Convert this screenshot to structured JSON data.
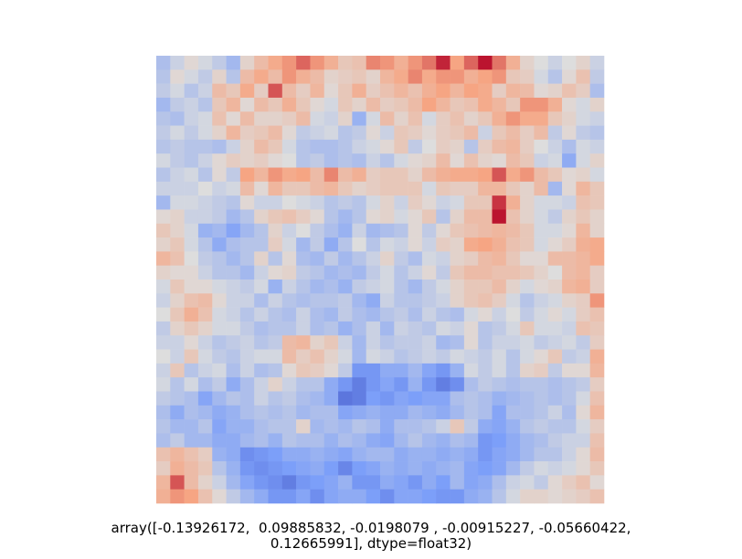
{
  "caption": {
    "line1": "array([-0.13926172,  0.09885832, -0.0198079 , -0.00915227, -0.05660422,",
    "line2": "0.12665991], dtype=float32)"
  },
  "chart_data": {
    "type": "heatmap",
    "title": "",
    "xlabel": "",
    "ylabel": "",
    "axes": "off",
    "colormap": "coolwarm",
    "vrange": [
      -1,
      1
    ],
    "rows": 32,
    "cols": 32,
    "values": [
      [
        -0.25,
        -0.1,
        0.05,
        -0.05,
        -0.15,
        -0.3,
        0.1,
        0.3,
        0.45,
        0.55,
        0.7,
        0.55,
        0.4,
        0.2,
        0.25,
        0.6,
        0.55,
        0.4,
        0.55,
        0.65,
        0.9,
        0.5,
        0.7,
        0.95,
        0.65,
        0.4,
        0.1,
        0.0,
        -0.1,
        0.0,
        0.1,
        -0.1
      ],
      [
        -0.2,
        0.05,
        -0.05,
        -0.15,
        0.1,
        -0.2,
        0.3,
        0.45,
        0.3,
        0.55,
        0.4,
        0.3,
        0.1,
        0.15,
        0.2,
        0.1,
        0.35,
        0.45,
        0.6,
        0.45,
        0.55,
        0.55,
        0.4,
        0.5,
        0.55,
        0.2,
        0.15,
        -0.05,
        -0.2,
        0.05,
        0.25,
        -0.15
      ],
      [
        -0.15,
        -0.05,
        -0.2,
        -0.1,
        0.3,
        0.2,
        0.45,
        0.15,
        0.75,
        0.3,
        0.15,
        0.35,
        0.05,
        0.2,
        0.4,
        0.15,
        0.25,
        0.35,
        0.25,
        0.4,
        0.5,
        0.35,
        0.5,
        0.45,
        0.15,
        0.35,
        0.3,
        0.05,
        0.1,
        0.25,
        0.15,
        -0.25
      ],
      [
        -0.3,
        -0.15,
        -0.1,
        -0.2,
        0.2,
        0.35,
        0.05,
        0.3,
        0.2,
        0.4,
        0.2,
        0.05,
        -0.05,
        0.2,
        0.1,
        0.3,
        0.15,
        0.2,
        0.3,
        0.5,
        0.35,
        0.2,
        0.25,
        0.45,
        0.35,
        0.2,
        0.55,
        0.55,
        0.4,
        0.05,
        -0.05,
        0.1
      ],
      [
        -0.2,
        -0.25,
        -0.1,
        -0.05,
        0.25,
        0.05,
        0.3,
        0.1,
        0.1,
        0.15,
        0.3,
        -0.05,
        -0.1,
        0.1,
        -0.35,
        -0.05,
        0.3,
        0.1,
        0.25,
        -0.05,
        0.15,
        0.25,
        0.1,
        0.2,
        0.4,
        0.55,
        0.45,
        0.45,
        0.2,
        0.1,
        -0.05,
        -0.1
      ],
      [
        -0.15,
        -0.05,
        -0.15,
        -0.05,
        0.1,
        0.35,
        0.15,
        0.2,
        0.3,
        0.05,
        -0.15,
        -0.1,
        -0.05,
        -0.2,
        -0.15,
        0.05,
        -0.1,
        0.2,
        0.15,
        0.05,
        0.15,
        0.2,
        0.3,
        -0.1,
        0.2,
        0.3,
        0.15,
        0.3,
        -0.15,
        0.05,
        -0.15,
        -0.2
      ],
      [
        -0.2,
        -0.15,
        -0.2,
        -0.2,
        -0.25,
        -0.1,
        0.1,
        0.3,
        0.2,
        -0.05,
        -0.2,
        -0.25,
        -0.25,
        -0.2,
        -0.1,
        -0.05,
        0.05,
        0.2,
        -0.15,
        0.0,
        0.15,
        0.1,
        -0.2,
        0.15,
        0.3,
        0.35,
        0.15,
        0.0,
        -0.1,
        -0.25,
        -0.05,
        -0.1
      ],
      [
        -0.05,
        -0.15,
        -0.2,
        -0.1,
        0.05,
        0.15,
        0.1,
        0.15,
        0.05,
        0.0,
        -0.2,
        -0.15,
        -0.25,
        -0.2,
        -0.25,
        -0.1,
        -0.2,
        -0.05,
        0.05,
        0.1,
        0.3,
        0.05,
        0.25,
        0.1,
        0.05,
        0.3,
        0.2,
        -0.1,
        -0.05,
        -0.4,
        -0.05,
        0.1
      ],
      [
        -0.2,
        -0.1,
        -0.05,
        -0.2,
        0.05,
        -0.15,
        0.5,
        0.35,
        0.55,
        0.45,
        0.5,
        0.3,
        0.6,
        0.3,
        0.4,
        0.15,
        0.2,
        0.2,
        0.1,
        0.3,
        0.4,
        0.45,
        0.45,
        0.5,
        0.75,
        0.45,
        0.55,
        0.3,
        0.2,
        0.05,
        0.1,
        -0.05
      ],
      [
        -0.1,
        -0.1,
        -0.1,
        0.0,
        -0.1,
        -0.05,
        0.3,
        0.05,
        0.35,
        0.2,
        0.2,
        0.3,
        0.35,
        0.2,
        0.1,
        0.15,
        0.2,
        0.2,
        0.2,
        -0.05,
        0.2,
        0.15,
        0.15,
        0.35,
        0.35,
        0.2,
        0.1,
        0.3,
        -0.3,
        0.05,
        0.35,
        0.2
      ],
      [
        -0.3,
        -0.05,
        -0.05,
        -0.1,
        -0.15,
        -0.2,
        0.05,
        -0.1,
        -0.1,
        0.0,
        -0.05,
        -0.1,
        -0.2,
        -0.15,
        -0.2,
        -0.05,
        0.1,
        -0.1,
        0.15,
        0.05,
        -0.1,
        -0.05,
        0.2,
        0.2,
        0.85,
        0.4,
        0.1,
        -0.05,
        -0.05,
        -0.1,
        0.25,
        0.2
      ],
      [
        0.05,
        0.1,
        -0.1,
        -0.1,
        -0.15,
        -0.3,
        -0.2,
        0.1,
        0.2,
        0.25,
        0.15,
        0.05,
        -0.2,
        -0.3,
        -0.2,
        0.05,
        0.1,
        -0.05,
        0.05,
        0.2,
        -0.2,
        0.1,
        0.3,
        0.3,
        0.95,
        0.25,
        0.1,
        -0.05,
        -0.15,
        0.1,
        0.2,
        0.1
      ],
      [
        0.2,
        0.1,
        -0.05,
        -0.35,
        -0.3,
        -0.45,
        -0.3,
        -0.2,
        0.1,
        -0.1,
        0.0,
        -0.15,
        -0.25,
        -0.35,
        -0.1,
        -0.3,
        -0.25,
        -0.2,
        0.05,
        -0.15,
        0.05,
        0.2,
        0.25,
        0.3,
        0.35,
        0.3,
        0.2,
        -0.05,
        -0.05,
        0.05,
        0.35,
        0.1
      ],
      [
        0.1,
        0.2,
        -0.05,
        -0.2,
        -0.4,
        -0.25,
        -0.2,
        -0.2,
        0.15,
        -0.05,
        -0.3,
        -0.15,
        -0.4,
        -0.2,
        0.0,
        -0.2,
        -0.05,
        -0.1,
        0.05,
        -0.1,
        0.15,
        0.1,
        0.45,
        0.5,
        0.4,
        0.25,
        0.2,
        -0.05,
        0.05,
        0.15,
        0.4,
        0.45
      ],
      [
        0.35,
        0.25,
        0.0,
        -0.15,
        -0.2,
        -0.3,
        -0.2,
        0.1,
        -0.2,
        0.05,
        -0.25,
        -0.3,
        -0.15,
        -0.3,
        -0.2,
        -0.1,
        0.1,
        -0.15,
        -0.25,
        -0.05,
        -0.1,
        0.1,
        0.15,
        0.3,
        0.35,
        0.2,
        0.05,
        0.05,
        0.3,
        0.3,
        0.35,
        0.45
      ],
      [
        0.1,
        0.05,
        0.05,
        -0.1,
        -0.2,
        -0.2,
        -0.3,
        -0.1,
        0.05,
        0.1,
        -0.15,
        -0.2,
        -0.3,
        -0.25,
        -0.3,
        -0.15,
        -0.05,
        -0.2,
        -0.1,
        0.05,
        -0.15,
        0.2,
        0.3,
        0.3,
        0.25,
        0.25,
        0.2,
        0.1,
        0.0,
        0.3,
        0.35,
        0.15
      ],
      [
        -0.05,
        0.2,
        0.05,
        0.05,
        -0.05,
        -0.1,
        -0.15,
        -0.05,
        -0.35,
        -0.1,
        -0.2,
        -0.3,
        -0.25,
        -0.35,
        -0.15,
        -0.1,
        -0.05,
        -0.2,
        -0.3,
        -0.15,
        -0.05,
        0.1,
        0.2,
        0.2,
        0.3,
        0.1,
        -0.05,
        0.05,
        0.1,
        0.35,
        0.4,
        0.15
      ],
      [
        -0.1,
        0.1,
        0.25,
        0.3,
        0.05,
        -0.1,
        -0.1,
        -0.25,
        -0.1,
        -0.2,
        -0.25,
        -0.2,
        -0.2,
        -0.15,
        -0.3,
        -0.4,
        -0.1,
        -0.2,
        -0.2,
        -0.15,
        -0.1,
        0.1,
        0.2,
        0.25,
        0.15,
        -0.05,
        -0.2,
        -0.1,
        -0.05,
        0.1,
        0.15,
        0.55
      ],
      [
        0.0,
        0.2,
        0.4,
        0.25,
        -0.05,
        -0.1,
        -0.2,
        -0.1,
        -0.2,
        -0.25,
        -0.1,
        -0.25,
        -0.3,
        -0.15,
        -0.25,
        -0.3,
        -0.2,
        -0.15,
        -0.25,
        -0.1,
        -0.2,
        -0.25,
        -0.05,
        0.05,
        -0.1,
        0.0,
        -0.15,
        -0.05,
        0.05,
        -0.05,
        0.15,
        0.25
      ],
      [
        -0.15,
        0.1,
        0.2,
        0.1,
        -0.05,
        -0.05,
        -0.15,
        -0.25,
        -0.2,
        -0.2,
        -0.1,
        -0.25,
        -0.2,
        -0.35,
        -0.25,
        -0.1,
        -0.3,
        -0.1,
        -0.15,
        -0.2,
        -0.05,
        -0.1,
        0.05,
        -0.2,
        -0.15,
        -0.05,
        0.2,
        -0.05,
        -0.05,
        -0.1,
        0.25,
        0.2
      ],
      [
        -0.1,
        -0.1,
        0.05,
        -0.1,
        -0.2,
        -0.15,
        -0.1,
        -0.2,
        -0.15,
        0.3,
        0.35,
        0.1,
        0.2,
        -0.1,
        -0.3,
        -0.1,
        -0.2,
        -0.15,
        -0.15,
        -0.1,
        -0.3,
        -0.25,
        0.05,
        -0.2,
        -0.1,
        -0.1,
        -0.05,
        -0.15,
        -0.1,
        -0.05,
        -0.15,
        0.15
      ],
      [
        0.0,
        -0.1,
        0.2,
        -0.05,
        -0.15,
        -0.2,
        -0.1,
        -0.05,
        -0.05,
        0.3,
        0.15,
        0.25,
        0.1,
        -0.05,
        -0.3,
        -0.05,
        -0.1,
        -0.2,
        -0.15,
        -0.1,
        -0.15,
        -0.05,
        -0.1,
        -0.15,
        -0.05,
        -0.2,
        -0.05,
        0.05,
        0.2,
        -0.15,
        -0.1,
        0.4
      ],
      [
        -0.1,
        0.2,
        -0.2,
        -0.1,
        -0.05,
        -0.25,
        -0.1,
        -0.25,
        -0.2,
        0.05,
        0.2,
        0.15,
        0.05,
        -0.15,
        -0.55,
        -0.55,
        -0.4,
        -0.4,
        -0.3,
        -0.45,
        -0.55,
        -0.35,
        -0.05,
        -0.15,
        -0.05,
        -0.2,
        0.1,
        0.15,
        -0.15,
        0.05,
        0.05,
        0.35
      ],
      [
        -0.05,
        -0.2,
        -0.05,
        -0.25,
        -0.15,
        -0.4,
        -0.25,
        -0.1,
        0.1,
        -0.1,
        -0.2,
        -0.2,
        -0.4,
        -0.55,
        -0.7,
        -0.55,
        -0.45,
        -0.55,
        -0.35,
        -0.55,
        -0.7,
        -0.6,
        -0.25,
        -0.15,
        -0.2,
        -0.25,
        -0.2,
        -0.2,
        -0.25,
        -0.2,
        -0.15,
        0.15
      ],
      [
        -0.15,
        -0.2,
        -0.25,
        -0.45,
        -0.3,
        -0.2,
        -0.25,
        -0.1,
        -0.2,
        -0.15,
        -0.25,
        -0.3,
        -0.4,
        -0.75,
        -0.7,
        -0.5,
        -0.55,
        -0.45,
        -0.5,
        -0.45,
        -0.45,
        -0.25,
        -0.2,
        -0.25,
        -0.35,
        -0.3,
        -0.25,
        -0.2,
        -0.25,
        -0.2,
        -0.05,
        0.25
      ],
      [
        -0.25,
        -0.4,
        -0.25,
        -0.3,
        -0.4,
        -0.35,
        -0.25,
        -0.2,
        -0.25,
        -0.2,
        -0.3,
        -0.25,
        -0.25,
        -0.45,
        -0.4,
        -0.35,
        -0.4,
        -0.4,
        -0.3,
        -0.35,
        -0.4,
        -0.3,
        -0.2,
        -0.25,
        -0.45,
        -0.25,
        -0.25,
        -0.2,
        -0.1,
        -0.25,
        0.05,
        0.35
      ],
      [
        -0.2,
        -0.3,
        -0.3,
        -0.2,
        -0.45,
        -0.35,
        -0.35,
        -0.25,
        -0.2,
        -0.2,
        0.1,
        -0.3,
        -0.25,
        -0.3,
        -0.2,
        -0.25,
        -0.4,
        -0.25,
        -0.25,
        -0.2,
        -0.1,
        0.2,
        -0.15,
        -0.4,
        -0.45,
        -0.35,
        -0.2,
        -0.15,
        -0.2,
        -0.2,
        -0.05,
        0.15
      ],
      [
        -0.25,
        -0.15,
        -0.3,
        -0.3,
        -0.4,
        -0.4,
        -0.3,
        -0.25,
        -0.35,
        -0.2,
        -0.25,
        -0.25,
        -0.35,
        -0.25,
        -0.3,
        -0.4,
        -0.45,
        -0.3,
        -0.2,
        -0.3,
        -0.35,
        -0.25,
        -0.3,
        -0.55,
        -0.5,
        -0.4,
        -0.3,
        -0.25,
        -0.15,
        -0.1,
        -0.1,
        0.25
      ],
      [
        0.25,
        0.35,
        0.25,
        0.15,
        -0.35,
        -0.4,
        -0.6,
        -0.55,
        -0.5,
        -0.4,
        -0.4,
        -0.35,
        -0.4,
        -0.45,
        -0.35,
        -0.3,
        -0.3,
        -0.4,
        -0.35,
        -0.35,
        -0.4,
        -0.35,
        -0.4,
        -0.55,
        -0.45,
        -0.4,
        -0.3,
        -0.2,
        -0.2,
        -0.1,
        0.05,
        0.3
      ],
      [
        0.15,
        0.4,
        0.3,
        0.2,
        -0.2,
        -0.35,
        -0.55,
        -0.6,
        -0.55,
        -0.5,
        -0.45,
        -0.4,
        -0.5,
        -0.65,
        -0.5,
        -0.45,
        -0.35,
        -0.4,
        -0.35,
        -0.4,
        -0.35,
        -0.3,
        -0.45,
        -0.5,
        -0.45,
        -0.3,
        -0.15,
        -0.05,
        -0.1,
        -0.05,
        0.05,
        0.2
      ],
      [
        0.35,
        0.75,
        0.3,
        0.1,
        -0.1,
        -0.3,
        -0.45,
        -0.55,
        -0.6,
        -0.7,
        -0.55,
        -0.5,
        -0.45,
        -0.35,
        -0.55,
        -0.55,
        -0.4,
        -0.45,
        -0.55,
        -0.4,
        -0.5,
        -0.3,
        -0.45,
        -0.4,
        -0.25,
        -0.1,
        -0.05,
        -0.15,
        0.05,
        0.15,
        0.25,
        0.05
      ],
      [
        0.4,
        0.55,
        0.5,
        0.25,
        0.05,
        -0.15,
        -0.3,
        -0.4,
        -0.55,
        -0.55,
        -0.45,
        -0.6,
        -0.45,
        -0.4,
        -0.4,
        -0.5,
        -0.6,
        -0.45,
        -0.45,
        -0.5,
        -0.55,
        -0.55,
        -0.4,
        -0.35,
        -0.2,
        -0.05,
        0.1,
        0.1,
        0.05,
        0.1,
        0.15,
        0.25
      ]
    ]
  }
}
